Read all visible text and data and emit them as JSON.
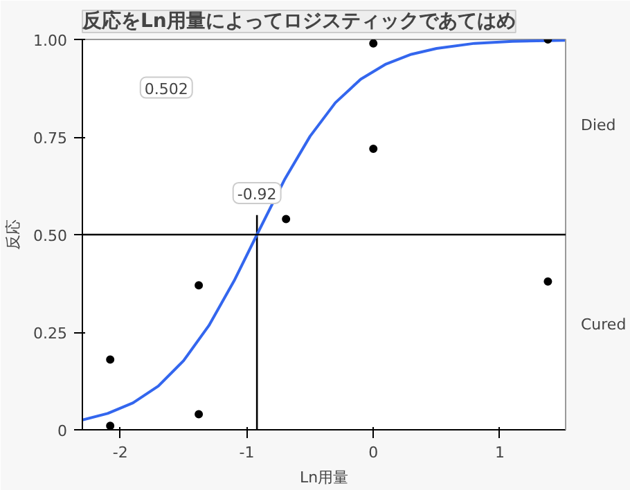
{
  "chart_data": {
    "type": "scatter",
    "title": "反応をLn用量によってロジスティックであてはめ",
    "xlabel": "Ln用量",
    "ylabel": "反応",
    "x": [
      -2.08,
      -2.08,
      -1.38,
      -1.38,
      -0.69,
      0,
      0,
      1.38,
      1.38
    ],
    "series": [
      {
        "color": "#000000",
        "marker": "circle",
        "values": [
          0.01,
          0.18,
          0.04,
          0.37,
          0.54,
          0.99,
          0.72,
          1.0,
          0.38
        ]
      },
      {
        "type": "line",
        "color": "#3366ee",
        "marker": "none",
        "x": [
          -2.3,
          -2.1,
          -1.9,
          -1.7,
          -1.5,
          -1.3,
          -1.1,
          -0.92,
          -0.7,
          -0.5,
          -0.3,
          -0.1,
          0.1,
          0.3,
          0.5,
          0.8,
          1.1,
          1.52
        ],
        "values": [
          0.025,
          0.042,
          0.069,
          0.112,
          0.177,
          0.267,
          0.382,
          0.5,
          0.642,
          0.752,
          0.838,
          0.898,
          0.937,
          0.962,
          0.977,
          0.99,
          0.995,
          0.998
        ]
      }
    ],
    "xlim": [
      -2.3,
      1.52
    ],
    "ylim": [
      0,
      1
    ],
    "xticks": [
      -2,
      -1,
      0,
      1
    ],
    "yticks": [
      {
        "value": 0,
        "label": "0"
      },
      {
        "value": 0.25,
        "label": "0.25"
      },
      {
        "value": 0.5,
        "label": "0.50"
      },
      {
        "value": 0.75,
        "label": "0.75"
      },
      {
        "value": 1,
        "label": "1.00"
      }
    ],
    "ref_lines": [
      {
        "axis": "y",
        "value": 0.5,
        "label": null,
        "color": "#000000"
      },
      {
        "axis": "x",
        "value": -0.92,
        "label": "-0.92",
        "color": "#000000"
      }
    ],
    "annotations": [
      "0.502",
      "Died",
      "Cured"
    ],
    "grid": false
  }
}
